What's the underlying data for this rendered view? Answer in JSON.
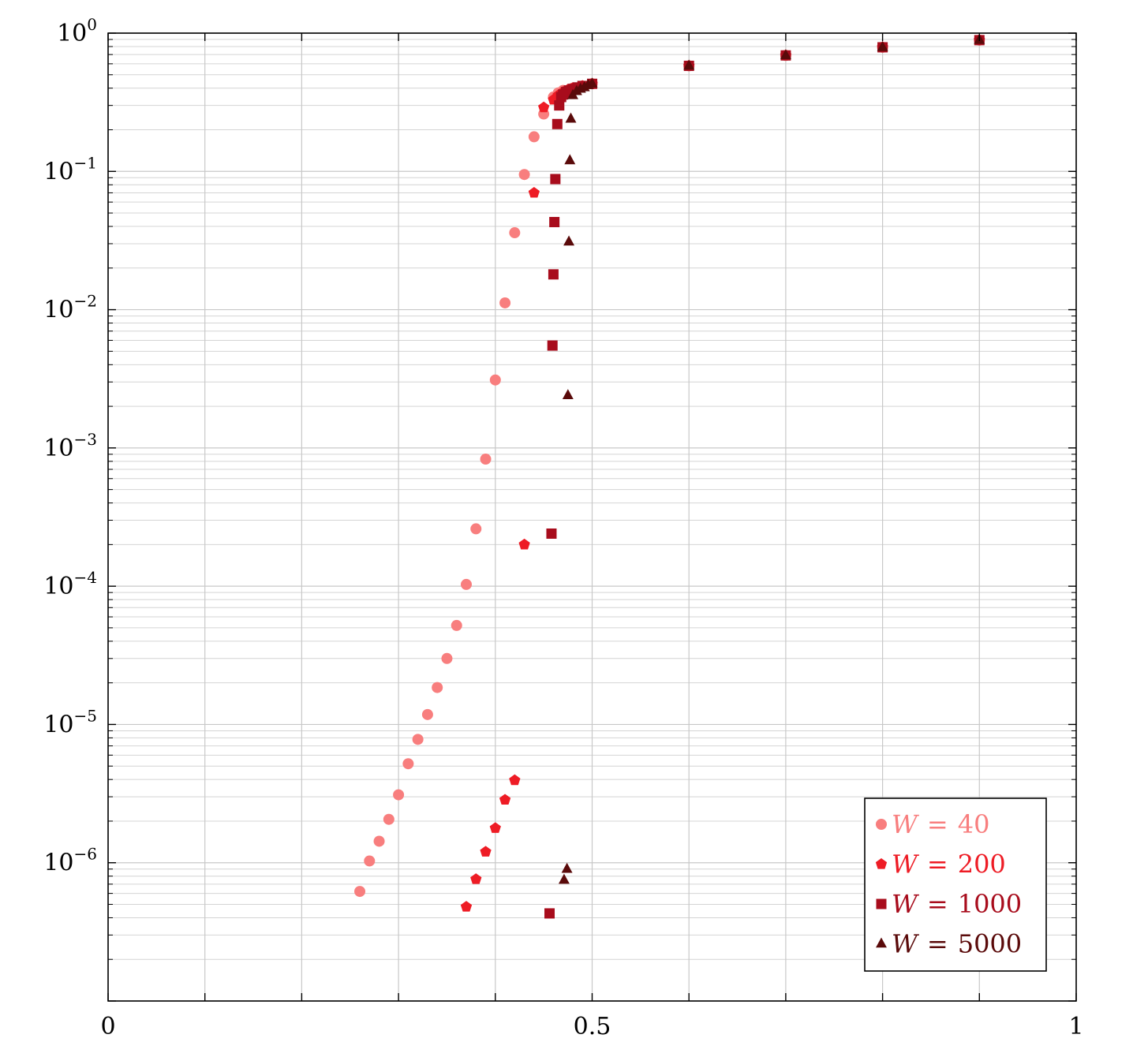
{
  "chart_data": {
    "type": "scatter",
    "title": "",
    "xlabel": "",
    "ylabel": "",
    "xlim": [
      0,
      1
    ],
    "ylim": [
      1e-07,
      1
    ],
    "y_scale": "log",
    "grid": "on (major and minor)",
    "legend_position": "bottom-right",
    "x_ticks": [
      "0",
      "0.5",
      "1"
    ],
    "y_ticks": [
      {
        "base": "10",
        "exp": "0"
      },
      {
        "base": "10",
        "exp": "−1"
      },
      {
        "base": "10",
        "exp": "−2"
      },
      {
        "base": "10",
        "exp": "−3"
      },
      {
        "base": "10",
        "exp": "−4"
      },
      {
        "base": "10",
        "exp": "−5"
      },
      {
        "base": "10",
        "exp": "−6"
      }
    ],
    "series": [
      {
        "name": "W = 40",
        "var": "W",
        "eq": "=",
        "num": "40",
        "color": "#f87e7e",
        "marker": "circle",
        "points": [
          [
            0.26,
            6.2e-07
          ],
          [
            0.27,
            1.03e-06
          ],
          [
            0.28,
            1.43e-06
          ],
          [
            0.29,
            2.06e-06
          ],
          [
            0.3,
            3.1e-06
          ],
          [
            0.31,
            5.2e-06
          ],
          [
            0.32,
            7.8e-06
          ],
          [
            0.33,
            1.18e-05
          ],
          [
            0.34,
            1.85e-05
          ],
          [
            0.35,
            3e-05
          ],
          [
            0.36,
            5.2e-05
          ],
          [
            0.37,
            0.000103
          ],
          [
            0.38,
            0.00026
          ],
          [
            0.39,
            0.00083
          ],
          [
            0.4,
            0.0031
          ],
          [
            0.41,
            0.0112
          ],
          [
            0.42,
            0.036
          ],
          [
            0.43,
            0.095
          ],
          [
            0.44,
            0.178
          ],
          [
            0.45,
            0.26
          ],
          [
            0.46,
            0.345
          ],
          [
            0.465,
            0.37
          ],
          [
            0.47,
            0.385
          ],
          [
            0.48,
            0.4
          ],
          [
            0.49,
            0.415
          ],
          [
            0.5,
            0.43
          ],
          [
            0.6,
            0.58
          ],
          [
            0.7,
            0.69
          ],
          [
            0.8,
            0.79
          ],
          [
            0.9,
            0.89
          ]
        ]
      },
      {
        "name": "W = 200",
        "var": "W",
        "eq": "=",
        "num": "200",
        "color": "#ee1c25",
        "marker": "pentagon",
        "points": [
          [
            0.37,
            4.8e-07
          ],
          [
            0.38,
            7.6e-07
          ],
          [
            0.39,
            1.2e-06
          ],
          [
            0.4,
            1.78e-06
          ],
          [
            0.41,
            2.85e-06
          ],
          [
            0.42,
            3.95e-06
          ],
          [
            0.43,
            0.0002
          ],
          [
            0.44,
            0.07
          ],
          [
            0.45,
            0.29
          ],
          [
            0.46,
            0.33
          ],
          [
            0.465,
            0.355
          ],
          [
            0.47,
            0.375
          ],
          [
            0.475,
            0.39
          ],
          [
            0.48,
            0.4
          ],
          [
            0.49,
            0.415
          ],
          [
            0.5,
            0.43
          ],
          [
            0.6,
            0.58
          ],
          [
            0.7,
            0.69
          ],
          [
            0.8,
            0.79
          ],
          [
            0.9,
            0.89
          ]
        ]
      },
      {
        "name": "W = 1000",
        "var": "W",
        "eq": "=",
        "num": "1000",
        "color": "#a80c1c",
        "marker": "square",
        "points": [
          [
            0.456,
            4.3e-07
          ],
          [
            0.458,
            0.00024
          ],
          [
            0.459,
            0.0055
          ],
          [
            0.46,
            0.018
          ],
          [
            0.461,
            0.043
          ],
          [
            0.462,
            0.088
          ],
          [
            0.464,
            0.22
          ],
          [
            0.466,
            0.3
          ],
          [
            0.468,
            0.345
          ],
          [
            0.47,
            0.36
          ],
          [
            0.473,
            0.375
          ],
          [
            0.476,
            0.385
          ],
          [
            0.48,
            0.395
          ],
          [
            0.485,
            0.405
          ],
          [
            0.49,
            0.415
          ],
          [
            0.5,
            0.43
          ],
          [
            0.6,
            0.58
          ],
          [
            0.7,
            0.69
          ],
          [
            0.8,
            0.79
          ],
          [
            0.9,
            0.89
          ]
        ]
      },
      {
        "name": "W = 5000",
        "var": "W",
        "eq": "=",
        "num": "5000",
        "color": "#5a0a0a",
        "marker": "triangle",
        "points": [
          [
            0.471,
            7.5e-07
          ],
          [
            0.474,
            9e-07
          ],
          [
            0.475,
            0.0024
          ],
          [
            0.476,
            0.031
          ],
          [
            0.477,
            0.12
          ],
          [
            0.478,
            0.24
          ],
          [
            0.48,
            0.355
          ],
          [
            0.484,
            0.38
          ],
          [
            0.488,
            0.395
          ],
          [
            0.492,
            0.405
          ],
          [
            0.496,
            0.42
          ],
          [
            0.5,
            0.43
          ],
          [
            0.6,
            0.58
          ],
          [
            0.7,
            0.69
          ],
          [
            0.8,
            0.79
          ],
          [
            0.9,
            0.89
          ]
        ]
      }
    ]
  }
}
